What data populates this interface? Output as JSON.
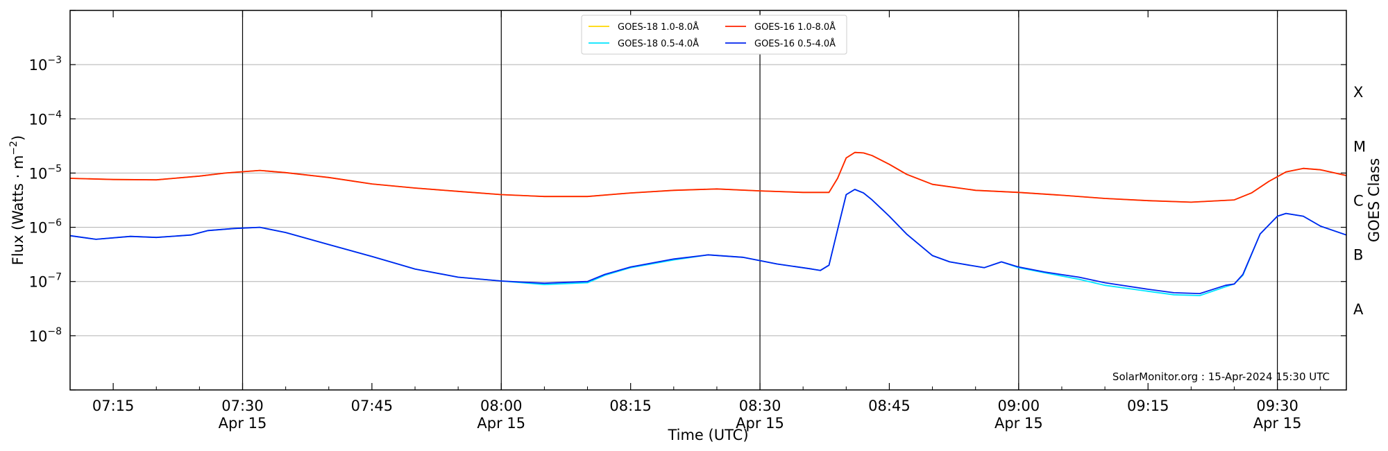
{
  "chart_data": {
    "type": "line",
    "date_label": "Apr 15",
    "x_range": [
      "07:10",
      "09:38"
    ],
    "y_scale": "log",
    "y_range": [
      1e-09,
      0.01
    ],
    "xlabel": "Time (UTC)",
    "ylabel": "Flux (Watts · m",
    "ylabel_exp": "−2",
    "ylabel_close": ")",
    "y2label": "GOES Class",
    "grid": "horizontal",
    "legend_position": "top-center",
    "credit": "SolarMonitor.org : 15-Apr-2024 15:30 UTC",
    "x_ticks": [
      {
        "time": "07:15",
        "label": "07:15",
        "date": ""
      },
      {
        "time": "07:30",
        "label": "07:30",
        "date": "Apr 15"
      },
      {
        "time": "07:45",
        "label": "07:45",
        "date": ""
      },
      {
        "time": "08:00",
        "label": "08:00",
        "date": "Apr 15"
      },
      {
        "time": "08:15",
        "label": "08:15",
        "date": ""
      },
      {
        "time": "08:30",
        "label": "08:30",
        "date": "Apr 15"
      },
      {
        "time": "08:45",
        "label": "08:45",
        "date": ""
      },
      {
        "time": "09:00",
        "label": "09:00",
        "date": "Apr 15"
      },
      {
        "time": "09:15",
        "label": "09:15",
        "date": ""
      },
      {
        "time": "09:30",
        "label": "09:30",
        "date": "Apr 15"
      }
    ],
    "vertical_lines": [
      "07:30",
      "08:00",
      "08:30",
      "09:00",
      "09:30"
    ],
    "y_ticks": [
      {
        "value": 1e-08,
        "mantissa": "10",
        "exponent": "−8"
      },
      {
        "value": 1e-07,
        "mantissa": "10",
        "exponent": "−7"
      },
      {
        "value": 1e-06,
        "mantissa": "10",
        "exponent": "−6"
      },
      {
        "value": 1e-05,
        "mantissa": "10",
        "exponent": "−5"
      },
      {
        "value": 0.0001,
        "mantissa": "10",
        "exponent": "−4"
      },
      {
        "value": 0.001,
        "mantissa": "10",
        "exponent": "−3"
      }
    ],
    "goes_classes": [
      {
        "label": "A",
        "value": 3.16e-08
      },
      {
        "label": "B",
        "value": 3.16e-07
      },
      {
        "label": "C",
        "value": 3.16e-06
      },
      {
        "label": "M",
        "value": 3.16e-05
      },
      {
        "label": "X",
        "value": 0.000316
      }
    ],
    "series": [
      {
        "name": "GOES-18 1.0-8.0Å",
        "color": "#ffd700",
        "points": [
          [
            "07:10",
            8e-06
          ],
          [
            "07:15",
            7.6e-06
          ],
          [
            "07:20",
            7.5e-06
          ],
          [
            "07:25",
            8.8e-06
          ],
          [
            "07:28",
            1e-05
          ],
          [
            "07:32",
            1.12e-05
          ],
          [
            "07:35",
            1.02e-05
          ],
          [
            "07:40",
            8.3e-06
          ],
          [
            "07:45",
            6.3e-06
          ],
          [
            "07:50",
            5.3e-06
          ],
          [
            "07:55",
            4.6e-06
          ],
          [
            "08:00",
            4e-06
          ],
          [
            "08:05",
            3.7e-06
          ],
          [
            "08:10",
            3.7e-06
          ],
          [
            "08:15",
            4.3e-06
          ],
          [
            "08:20",
            4.8e-06
          ],
          [
            "08:25",
            5.1e-06
          ],
          [
            "08:30",
            4.7e-06
          ],
          [
            "08:35",
            4.4e-06
          ],
          [
            "08:38",
            4.4e-06
          ],
          [
            "08:39",
            8e-06
          ],
          [
            "08:40",
            1.9e-05
          ],
          [
            "08:41",
            2.4e-05
          ],
          [
            "08:42",
            2.35e-05
          ],
          [
            "08:43",
            2.1e-05
          ],
          [
            "08:45",
            1.45e-05
          ],
          [
            "08:47",
            9.5e-06
          ],
          [
            "08:50",
            6.2e-06
          ],
          [
            "08:55",
            4.8e-06
          ],
          [
            "09:00",
            4.4e-06
          ],
          [
            "09:05",
            3.9e-06
          ],
          [
            "09:10",
            3.4e-06
          ],
          [
            "09:15",
            3.1e-06
          ],
          [
            "09:20",
            2.9e-06
          ],
          [
            "09:25",
            3.2e-06
          ],
          [
            "09:27",
            4.3e-06
          ],
          [
            "09:29",
            7e-06
          ],
          [
            "09:31",
            1.05e-05
          ],
          [
            "09:33",
            1.22e-05
          ],
          [
            "09:35",
            1.15e-05
          ],
          [
            "09:38",
            9e-06
          ]
        ]
      },
      {
        "name": "GOES-16 1.0-8.0Å",
        "color": "#ff2200",
        "points": [
          [
            "07:10",
            8e-06
          ],
          [
            "07:15",
            7.6e-06
          ],
          [
            "07:20",
            7.5e-06
          ],
          [
            "07:25",
            8.8e-06
          ],
          [
            "07:28",
            1e-05
          ],
          [
            "07:32",
            1.12e-05
          ],
          [
            "07:35",
            1.02e-05
          ],
          [
            "07:40",
            8.3e-06
          ],
          [
            "07:45",
            6.3e-06
          ],
          [
            "07:50",
            5.3e-06
          ],
          [
            "07:55",
            4.6e-06
          ],
          [
            "08:00",
            4e-06
          ],
          [
            "08:05",
            3.7e-06
          ],
          [
            "08:10",
            3.7e-06
          ],
          [
            "08:15",
            4.3e-06
          ],
          [
            "08:20",
            4.8e-06
          ],
          [
            "08:25",
            5.1e-06
          ],
          [
            "08:30",
            4.7e-06
          ],
          [
            "08:35",
            4.4e-06
          ],
          [
            "08:38",
            4.4e-06
          ],
          [
            "08:39",
            8e-06
          ],
          [
            "08:40",
            1.9e-05
          ],
          [
            "08:41",
            2.4e-05
          ],
          [
            "08:42",
            2.35e-05
          ],
          [
            "08:43",
            2.1e-05
          ],
          [
            "08:45",
            1.45e-05
          ],
          [
            "08:47",
            9.5e-06
          ],
          [
            "08:50",
            6.2e-06
          ],
          [
            "08:55",
            4.8e-06
          ],
          [
            "09:00",
            4.4e-06
          ],
          [
            "09:05",
            3.9e-06
          ],
          [
            "09:10",
            3.4e-06
          ],
          [
            "09:15",
            3.1e-06
          ],
          [
            "09:20",
            2.9e-06
          ],
          [
            "09:25",
            3.2e-06
          ],
          [
            "09:27",
            4.3e-06
          ],
          [
            "09:29",
            7e-06
          ],
          [
            "09:31",
            1.05e-05
          ],
          [
            "09:33",
            1.22e-05
          ],
          [
            "09:35",
            1.15e-05
          ],
          [
            "09:38",
            9e-06
          ]
        ]
      },
      {
        "name": "GOES-18 0.5-4.0Å",
        "color": "#00e5ff",
        "points": [
          [
            "07:10",
            7e-07
          ],
          [
            "07:13",
            6e-07
          ],
          [
            "07:17",
            6.8e-07
          ],
          [
            "07:20",
            6.5e-07
          ],
          [
            "07:24",
            7.2e-07
          ],
          [
            "07:26",
            8.7e-07
          ],
          [
            "07:29",
            9.5e-07
          ],
          [
            "07:32",
            1e-06
          ],
          [
            "07:35",
            8e-07
          ],
          [
            "07:40",
            4.8e-07
          ],
          [
            "07:45",
            2.9e-07
          ],
          [
            "07:50",
            1.7e-07
          ],
          [
            "07:55",
            1.2e-07
          ],
          [
            "08:00",
            1.02e-07
          ],
          [
            "08:05",
            8.8e-08
          ],
          [
            "08:10",
            9.5e-08
          ],
          [
            "08:12",
            1.3e-07
          ],
          [
            "08:15",
            1.8e-07
          ],
          [
            "08:20",
            2.5e-07
          ],
          [
            "08:24",
            3.1e-07
          ],
          [
            "08:28",
            2.8e-07
          ],
          [
            "08:32",
            2.1e-07
          ],
          [
            "08:36",
            1.7e-07
          ],
          [
            "08:37",
            1.6e-07
          ],
          [
            "08:38",
            2e-07
          ],
          [
            "08:39",
            9e-07
          ],
          [
            "08:40",
            4e-06
          ],
          [
            "08:41",
            5e-06
          ],
          [
            "08:42",
            4.3e-06
          ],
          [
            "08:43",
            3.2e-06
          ],
          [
            "08:45",
            1.6e-06
          ],
          [
            "08:47",
            7.5e-07
          ],
          [
            "08:50",
            3e-07
          ],
          [
            "08:52",
            2.3e-07
          ],
          [
            "08:56",
            1.8e-07
          ],
          [
            "08:58",
            2.3e-07
          ],
          [
            "09:00",
            1.8e-07
          ],
          [
            "09:03",
            1.45e-07
          ],
          [
            "09:07",
            1.1e-07
          ],
          [
            "09:10",
            8.5e-08
          ],
          [
            "09:15",
            6.6e-08
          ],
          [
            "09:18",
            5.7e-08
          ],
          [
            "09:21",
            5.5e-08
          ],
          [
            "09:24",
            8e-08
          ],
          [
            "09:25",
            9e-08
          ],
          [
            "09:26",
            1.3e-07
          ],
          [
            "09:28",
            7.5e-07
          ],
          [
            "09:30",
            1.6e-06
          ],
          [
            "09:31",
            1.8e-06
          ],
          [
            "09:33",
            1.6e-06
          ],
          [
            "09:35",
            1.05e-06
          ],
          [
            "09:38",
            7.2e-07
          ]
        ]
      },
      {
        "name": "GOES-16 0.5-4.0Å",
        "color": "#0022ee",
        "points": [
          [
            "07:10",
            7e-07
          ],
          [
            "07:13",
            6e-07
          ],
          [
            "07:17",
            6.8e-07
          ],
          [
            "07:20",
            6.5e-07
          ],
          [
            "07:24",
            7.2e-07
          ],
          [
            "07:26",
            8.7e-07
          ],
          [
            "07:29",
            9.5e-07
          ],
          [
            "07:32",
            1e-06
          ],
          [
            "07:35",
            8e-07
          ],
          [
            "07:40",
            4.8e-07
          ],
          [
            "07:45",
            2.9e-07
          ],
          [
            "07:50",
            1.7e-07
          ],
          [
            "07:55",
            1.2e-07
          ],
          [
            "08:00",
            1.02e-07
          ],
          [
            "08:05",
            9.3e-08
          ],
          [
            "08:10",
            1e-07
          ],
          [
            "08:12",
            1.35e-07
          ],
          [
            "08:15",
            1.85e-07
          ],
          [
            "08:20",
            2.6e-07
          ],
          [
            "08:24",
            3.1e-07
          ],
          [
            "08:28",
            2.8e-07
          ],
          [
            "08:32",
            2.1e-07
          ],
          [
            "08:36",
            1.7e-07
          ],
          [
            "08:37",
            1.6e-07
          ],
          [
            "08:38",
            2e-07
          ],
          [
            "08:39",
            9e-07
          ],
          [
            "08:40",
            4e-06
          ],
          [
            "08:41",
            5e-06
          ],
          [
            "08:42",
            4.3e-06
          ],
          [
            "08:43",
            3.2e-06
          ],
          [
            "08:45",
            1.6e-06
          ],
          [
            "08:47",
            7.5e-07
          ],
          [
            "08:50",
            3e-07
          ],
          [
            "08:52",
            2.3e-07
          ],
          [
            "08:56",
            1.8e-07
          ],
          [
            "08:58",
            2.3e-07
          ],
          [
            "09:00",
            1.85e-07
          ],
          [
            "09:03",
            1.5e-07
          ],
          [
            "09:07",
            1.2e-07
          ],
          [
            "09:10",
            9.5e-08
          ],
          [
            "09:15",
            7.2e-08
          ],
          [
            "09:18",
            6.2e-08
          ],
          [
            "09:21",
            6e-08
          ],
          [
            "09:24",
            8.5e-08
          ],
          [
            "09:25",
            9e-08
          ],
          [
            "09:26",
            1.35e-07
          ],
          [
            "09:28",
            7.5e-07
          ],
          [
            "09:30",
            1.6e-06
          ],
          [
            "09:31",
            1.8e-06
          ],
          [
            "09:33",
            1.6e-06
          ],
          [
            "09:35",
            1.05e-06
          ],
          [
            "09:38",
            7.2e-07
          ]
        ]
      }
    ],
    "legend_order": [
      0,
      2,
      1,
      3
    ]
  }
}
